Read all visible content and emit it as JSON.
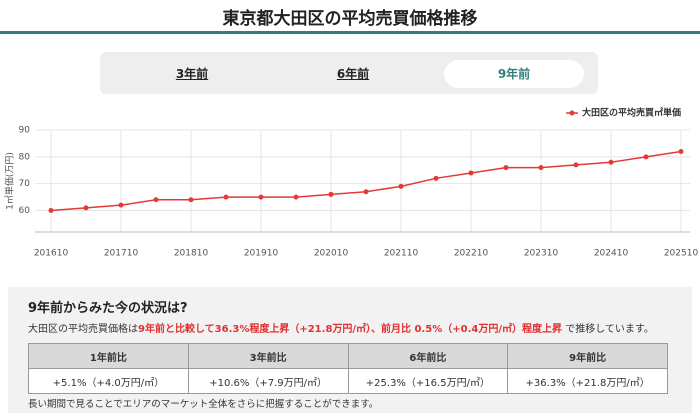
{
  "header": {
    "title": "東京都大田区の平均売買価格推移"
  },
  "tabs": [
    {
      "label": "3年前",
      "active": false
    },
    {
      "label": "6年前",
      "active": false
    },
    {
      "label": "9年前",
      "active": true
    }
  ],
  "chart_data": {
    "type": "line",
    "y_label": "1㎡単価(万円)",
    "categories": [
      "201610",
      null,
      "201710",
      null,
      "201810",
      null,
      "201910",
      null,
      "202010",
      null,
      "202110",
      null,
      "202210",
      null,
      "202310",
      null,
      "202410",
      null,
      "202510"
    ],
    "series": [
      {
        "name": "大田区の平均売買㎡単価",
        "color": "#e53935",
        "values": [
          60,
          61,
          62,
          64,
          64,
          65,
          65,
          65,
          66,
          67,
          69,
          72,
          74,
          76,
          76,
          77,
          78,
          80,
          82
        ]
      }
    ],
    "ylim": [
      52,
      90
    ],
    "yticks": [
      60,
      70,
      80,
      90
    ],
    "grid": true,
    "legend": "top-right"
  },
  "summary": {
    "title": "9年前からみた今の状況は?",
    "text": [
      "大田区の平均売買価格は",
      "9年前と比較して36.3%程度上昇（+21.8万円/㎡）、前月比 0.5%（+0.4万円/㎡）程度上昇",
      " で推移しています。"
    ],
    "note": "長い期間で見ることでエリアのマーケット全体をさらに把握することができます。"
  },
  "table": {
    "headers": [
      "1年前比",
      "3年前比",
      "6年前比",
      "9年前比"
    ],
    "rows": [
      [
        "+5.1%（+4.0万円/㎡）",
        "+10.6%（+7.9万円/㎡）",
        "+25.3%（+16.5万円/㎡）",
        "+36.3%（+21.8万円/㎡）"
      ]
    ]
  }
}
